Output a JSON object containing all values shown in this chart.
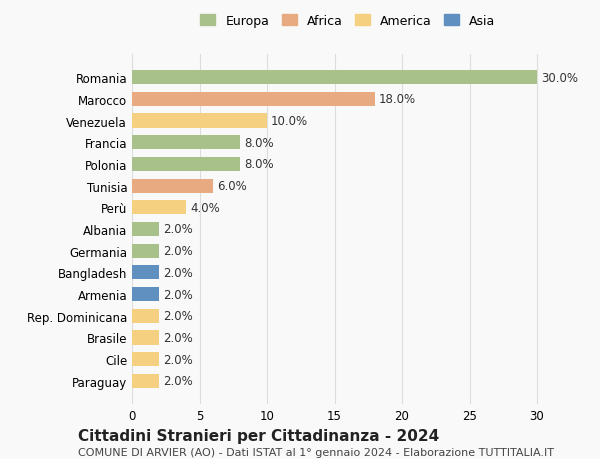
{
  "categories": [
    "Romania",
    "Marocco",
    "Venezuela",
    "Francia",
    "Polonia",
    "Tunisia",
    "Perù",
    "Albania",
    "Germania",
    "Bangladesh",
    "Armenia",
    "Rep. Dominicana",
    "Brasile",
    "Cile",
    "Paraguay"
  ],
  "values": [
    30.0,
    18.0,
    10.0,
    8.0,
    8.0,
    6.0,
    4.0,
    2.0,
    2.0,
    2.0,
    2.0,
    2.0,
    2.0,
    2.0,
    2.0
  ],
  "continents": [
    "Europa",
    "Africa",
    "America",
    "Europa",
    "Europa",
    "Africa",
    "America",
    "Europa",
    "Europa",
    "Asia",
    "Asia",
    "America",
    "America",
    "America",
    "America"
  ],
  "continent_colors": {
    "Europa": "#a8c08a",
    "Africa": "#e8aa80",
    "America": "#f5d080",
    "Asia": "#6090c0"
  },
  "legend_order": [
    "Europa",
    "Africa",
    "America",
    "Asia"
  ],
  "title": "Cittadini Stranieri per Cittadinanza - 2024",
  "subtitle": "COMUNE DI ARVIER (AO) - Dati ISTAT al 1° gennaio 2024 - Elaborazione TUTTITALIA.IT",
  "xlim": [
    0,
    32
  ],
  "xticks": [
    0,
    5,
    10,
    15,
    20,
    25,
    30
  ],
  "bar_height": 0.65,
  "background_color": "#f9f9f9",
  "grid_color": "#dddddd",
  "label_fontsize": 8.5,
  "title_fontsize": 11,
  "subtitle_fontsize": 8
}
